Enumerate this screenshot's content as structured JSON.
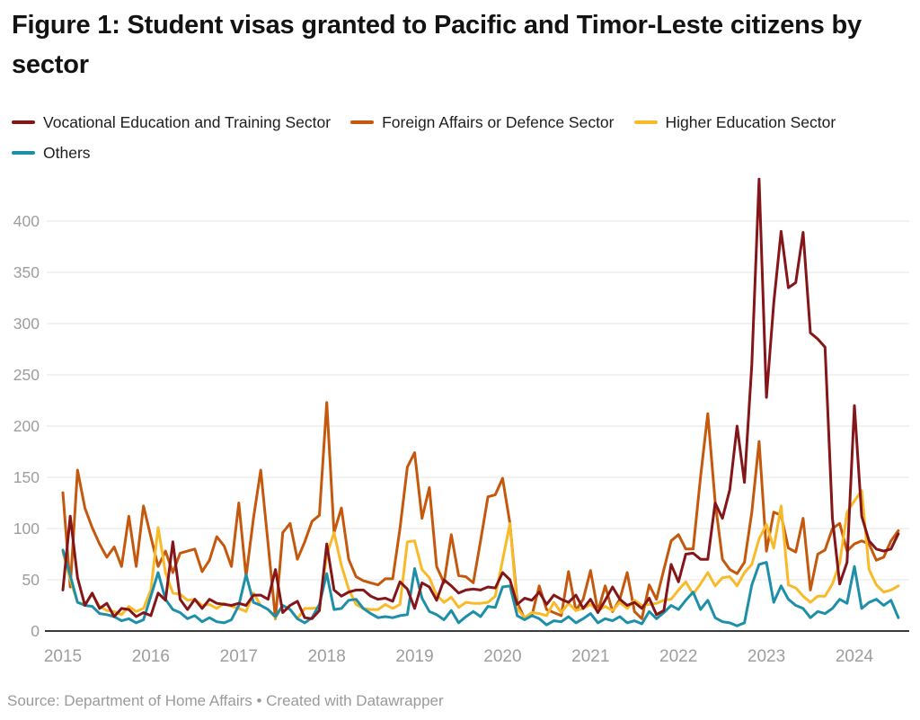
{
  "header": {
    "title": "Figure 1: Student visas granted to Pacific and Timor-Leste citizens by sector"
  },
  "legend": {
    "items": [
      {
        "label": "Vocational Education and Training Sector",
        "color": "#841619"
      },
      {
        "label": "Foreign Affairs or Defence Sector",
        "color": "#C4590D"
      },
      {
        "label": "Higher Education Sector",
        "color": "#F9BA29"
      },
      {
        "label": "Others",
        "color": "#1E8FA9"
      }
    ]
  },
  "source_line": "Source: Department of Home Affairs • Created with Datawrapper",
  "chart_data": {
    "type": "line",
    "x_start": "2015-01",
    "x_end": "2024-07",
    "x_frequency": "monthly",
    "x_ticks": [
      "2015",
      "2016",
      "2017",
      "2018",
      "2019",
      "2020",
      "2021",
      "2022",
      "2023",
      "2024"
    ],
    "y_ticks": [
      0,
      50,
      100,
      150,
      200,
      250,
      300,
      350,
      400
    ],
    "ylim": [
      0,
      450
    ],
    "grid": true,
    "legend_position": "top",
    "draw_order": [
      1,
      2,
      3,
      0
    ],
    "series": [
      {
        "name": "Vocational Education and Training Sector",
        "color": "#841619",
        "values": [
          40,
          112,
          52,
          25,
          37,
          22,
          27,
          14,
          22,
          21,
          14,
          18,
          15,
          37,
          30,
          87,
          31,
          21,
          31,
          22,
          31,
          27,
          26,
          25,
          27,
          25,
          35,
          35,
          31,
          60,
          18,
          25,
          29,
          13,
          12,
          20,
          85,
          40,
          34,
          38,
          40,
          40,
          34,
          31,
          32,
          29,
          48,
          41,
          22,
          47,
          43,
          30,
          50,
          44,
          37,
          40,
          41,
          40,
          43,
          42,
          57,
          50,
          26,
          32,
          30,
          38,
          26,
          35,
          31,
          28,
          35,
          22,
          31,
          18,
          30,
          43,
          31,
          25,
          28,
          22,
          32,
          16,
          20,
          65,
          48,
          75,
          76,
          70,
          70,
          125,
          110,
          138,
          200,
          145,
          260,
          441,
          228,
          320,
          390,
          335,
          340,
          389,
          291,
          285,
          277,
          110,
          46,
          67,
          220,
          112,
          88,
          80,
          78,
          80,
          95
        ]
      },
      {
        "name": "Foreign Affairs or Defence Sector",
        "color": "#C4590D",
        "values": [
          135,
          43,
          157,
          120,
          101,
          85,
          72,
          82,
          63,
          112,
          63,
          122,
          92,
          63,
          78,
          57,
          76,
          78,
          80,
          58,
          69,
          92,
          83,
          63,
          125,
          53,
          110,
          157,
          85,
          12,
          96,
          105,
          70,
          87,
          107,
          113,
          223,
          96,
          120,
          70,
          53,
          49,
          47,
          45,
          51,
          51,
          100,
          160,
          174,
          110,
          140,
          63,
          47,
          94,
          54,
          53,
          47,
          88,
          131,
          133,
          149,
          105,
          28,
          12,
          15,
          44,
          21,
          18,
          15,
          58,
          20,
          31,
          59,
          19,
          44,
          19,
          31,
          57,
          19,
          12,
          45,
          31,
          60,
          88,
          94,
          80,
          80,
          150,
          212,
          126,
          70,
          60,
          56,
          67,
          116,
          185,
          78,
          116,
          113,
          81,
          77,
          110,
          40,
          75,
          79,
          100,
          105,
          78,
          85,
          88,
          85,
          69,
          72,
          88,
          98
        ]
      },
      {
        "name": "Higher Education Sector",
        "color": "#F9BA29",
        "values": [
          77,
          50,
          28,
          26,
          36,
          24,
          20,
          19,
          16,
          24,
          19,
          22,
          40,
          101,
          57,
          37,
          36,
          30,
          31,
          25,
          26,
          22,
          27,
          24,
          22,
          19,
          37,
          25,
          21,
          13,
          25,
          21,
          12,
          22,
          22,
          23,
          74,
          96,
          64,
          41,
          26,
          22,
          21,
          21,
          26,
          22,
          26,
          87,
          88,
          60,
          52,
          35,
          28,
          33,
          23,
          28,
          27,
          27,
          28,
          34,
          69,
          105,
          22,
          13,
          18,
          17,
          15,
          28,
          18,
          27,
          20,
          22,
          26,
          20,
          24,
          20,
          28,
          22,
          30,
          25,
          26,
          27,
          30,
          31,
          40,
          48,
          36,
          46,
          57,
          44,
          52,
          53,
          44,
          57,
          65,
          90,
          104,
          81,
          122,
          45,
          42,
          34,
          28,
          34,
          34,
          46,
          66,
          116,
          127,
          137,
          60,
          45,
          38,
          40,
          44
        ]
      },
      {
        "name": "Others",
        "color": "#1E8FA9",
        "values": [
          79,
          54,
          28,
          25,
          24,
          17,
          16,
          14,
          10,
          12,
          8,
          11,
          34,
          57,
          31,
          21,
          18,
          12,
          15,
          9,
          13,
          9,
          8,
          11,
          25,
          55,
          28,
          25,
          21,
          14,
          25,
          21,
          12,
          8,
          13,
          26,
          56,
          21,
          22,
          30,
          31,
          22,
          17,
          13,
          14,
          13,
          15,
          16,
          61,
          32,
          19,
          16,
          11,
          20,
          8,
          14,
          19,
          14,
          24,
          23,
          43,
          44,
          15,
          11,
          15,
          12,
          6,
          10,
          9,
          14,
          8,
          12,
          17,
          8,
          12,
          10,
          14,
          8,
          10,
          7,
          19,
          12,
          18,
          25,
          21,
          30,
          38,
          21,
          30,
          13,
          9,
          8,
          5,
          8,
          45,
          65,
          67,
          28,
          44,
          31,
          25,
          22,
          13,
          19,
          17,
          22,
          31,
          27,
          63,
          22,
          28,
          31,
          25,
          30,
          13
        ]
      }
    ]
  }
}
